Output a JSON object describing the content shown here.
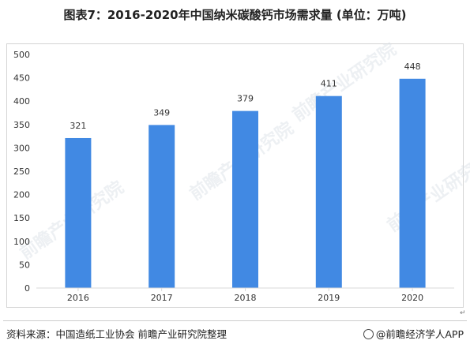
{
  "title": "图表7：2016-2020年中国纳米碳酸钙市场需求量 (单位：万吨)",
  "source": "资料来源：中国造纸工业协会 前瞻产业研究院整理",
  "brand": "@前瞻经济学人APP",
  "watermark": "前瞻产业研究院",
  "colors": {
    "bar": "#4189e3",
    "grid": "#d9d9d9",
    "text": "#333333"
  },
  "chart_data": {
    "type": "bar",
    "categories": [
      "2016",
      "2017",
      "2018",
      "2019",
      "2020"
    ],
    "values": [
      321,
      349,
      379,
      411,
      448
    ],
    "title": "图表7：2016-2020年中国纳米碳酸钙市场需求量 (单位：万吨)",
    "xlabel": "",
    "ylabel": "",
    "ylim": [
      0,
      500
    ],
    "yticks": [
      0,
      50,
      100,
      150,
      200,
      250,
      300,
      350,
      400,
      450,
      500
    ],
    "data_labels": true,
    "grid": false,
    "legend": "none"
  }
}
